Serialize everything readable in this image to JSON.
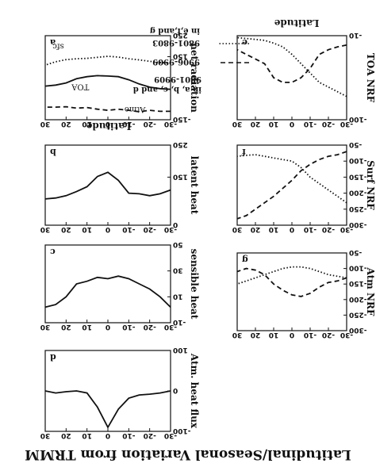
{
  "figure": {
    "title": "Latitudinal/Seasonal Variation from TRMM",
    "latitude_label": "Latitude",
    "legend": {
      "note_top": "in e,f,and g",
      "note_bottom": "in a, b, c, and d",
      "entries": [
        {
          "label": "9801-9803",
          "style": "dotted"
        },
        {
          "label": "9906-9909",
          "style": "dashed"
        },
        {
          "label": "9801-9909",
          "style": "solid"
        }
      ]
    },
    "colors": {
      "ink": "#111111",
      "background": "#ffffff"
    }
  },
  "chart_data": [
    {
      "panel": "a",
      "type": "line",
      "ylabel": "net radiation",
      "xlim": [
        -30,
        30
      ],
      "ylim": [
        250,
        -150
      ],
      "yticks": [
        -150,
        150,
        250
      ],
      "xticks": [
        -30,
        -20,
        -10,
        0,
        10,
        20,
        30
      ],
      "annotations": [
        "Atmo",
        "TOA",
        "sfc"
      ],
      "x": [
        -30,
        -25,
        -20,
        -15,
        -10,
        -5,
        0,
        5,
        10,
        15,
        20,
        25,
        30
      ],
      "series": [
        {
          "style": "dashed",
          "values": [
            -110,
            -110,
            -105,
            -112,
            -105,
            -100,
            -105,
            -100,
            -92,
            -95,
            -88,
            -90,
            -90
          ]
        },
        {
          "style": "solid",
          "values": [
            -5,
            -2,
            5,
            20,
            40,
            55,
            58,
            60,
            55,
            45,
            25,
            15,
            10
          ]
        },
        {
          "style": "dotted",
          "values": [
            120,
            122,
            128,
            135,
            140,
            148,
            152,
            147,
            142,
            140,
            136,
            126,
            110
          ]
        }
      ]
    },
    {
      "panel": "b",
      "type": "line",
      "ylabel": "latent heat",
      "xlim": [
        -30,
        30
      ],
      "ylim": [
        250,
        0
      ],
      "yticks": [
        0,
        150,
        250
      ],
      "xticks": [
        -30,
        -20,
        -10,
        0,
        10,
        20,
        30
      ],
      "x": [
        -30,
        -25,
        -20,
        -15,
        -10,
        -5,
        0,
        5,
        10,
        15,
        20,
        25,
        30
      ],
      "series": [
        {
          "style": "solid",
          "values": [
            110,
            98,
            92,
            98,
            100,
            140,
            165,
            152,
            120,
            105,
            92,
            85,
            82
          ]
        }
      ]
    },
    {
      "panel": "c",
      "type": "line",
      "ylabel": "sensible heat",
      "xlim": [
        -30,
        30
      ],
      "ylim": [
        50,
        -10
      ],
      "yticks": [
        -10,
        10,
        30,
        50
      ],
      "xticks": [
        -30,
        -20,
        -10,
        0,
        10,
        20,
        30
      ],
      "x": [
        -30,
        -25,
        -20,
        -15,
        -10,
        -5,
        0,
        5,
        10,
        15,
        20,
        25,
        30
      ],
      "series": [
        {
          "style": "solid",
          "values": [
            2,
            10,
            16,
            20,
            24,
            26,
            24,
            25,
            22,
            20,
            10,
            4,
            2
          ]
        }
      ]
    },
    {
      "panel": "d",
      "type": "line",
      "ylabel": "Atm. heat flux",
      "xlim": [
        -30,
        30
      ],
      "ylim": [
        100,
        -100
      ],
      "yticks": [
        -100,
        0,
        100
      ],
      "xticks": [
        -30,
        -20,
        -10,
        0,
        10,
        20,
        30
      ],
      "x": [
        -30,
        -25,
        -20,
        -15,
        -10,
        -5,
        0,
        5,
        10,
        15,
        20,
        25,
        30
      ],
      "series": [
        {
          "style": "solid",
          "values": [
            0,
            -5,
            -8,
            -10,
            -18,
            -45,
            -90,
            -40,
            -5,
            0,
            -2,
            -5,
            0
          ]
        }
      ]
    },
    {
      "panel": "e",
      "type": "line",
      "ylabel": "TOA NRF",
      "xlim": [
        -30,
        30
      ],
      "ylim": [
        -10,
        -100
      ],
      "yticks": [
        -100,
        -10
      ],
      "xticks": [
        -30,
        -20,
        -10,
        0,
        10,
        20,
        30
      ],
      "x": [
        -30,
        -25,
        -20,
        -15,
        -10,
        -5,
        0,
        5,
        10,
        15,
        20,
        25,
        30
      ],
      "series": [
        {
          "style": "dotted",
          "values": [
            -75,
            -70,
            -65,
            -60,
            -50,
            -40,
            -30,
            -22,
            -18,
            -15,
            -14,
            -13,
            -12
          ]
        },
        {
          "style": "dashed",
          "values": [
            -20,
            -22,
            -25,
            -30,
            -45,
            -55,
            -60,
            -60,
            -55,
            -40,
            -35,
            -30,
            -25
          ]
        }
      ]
    },
    {
      "panel": "f",
      "type": "line",
      "ylabel": "Surf NRF",
      "xlim": [
        -30,
        30
      ],
      "ylim": [
        -50,
        -300
      ],
      "yticks": [
        -300,
        -250,
        -200,
        -150,
        -100,
        -50
      ],
      "xticks": [
        -30,
        -20,
        -10,
        0,
        10,
        20,
        30
      ],
      "x": [
        -30,
        -25,
        -20,
        -15,
        -10,
        -5,
        0,
        5,
        10,
        15,
        20,
        25,
        30
      ],
      "series": [
        {
          "style": "dotted",
          "values": [
            -230,
            -210,
            -190,
            -170,
            -150,
            -120,
            -100,
            -95,
            -90,
            -85,
            -80,
            -82,
            -85
          ]
        },
        {
          "style": "dashed",
          "values": [
            -70,
            -80,
            -85,
            -95,
            -110,
            -130,
            -160,
            -185,
            -210,
            -230,
            -250,
            -270,
            -280
          ]
        }
      ]
    },
    {
      "panel": "g",
      "type": "line",
      "ylabel": "Atm NRF",
      "xlim": [
        -30,
        30
      ],
      "ylim": [
        -50,
        -300
      ],
      "yticks": [
        -300,
        -250,
        -200,
        -150,
        -100,
        -50
      ],
      "xticks": [
        -30,
        -20,
        -10,
        0,
        10,
        20,
        30
      ],
      "x": [
        -30,
        -25,
        -20,
        -15,
        -10,
        -5,
        0,
        5,
        10,
        15,
        20,
        25,
        30
      ],
      "series": [
        {
          "style": "dotted",
          "values": [
            -130,
            -125,
            -120,
            -110,
            -100,
            -95,
            -95,
            -100,
            -110,
            -120,
            -130,
            -140,
            -150
          ]
        },
        {
          "style": "dashed",
          "values": [
            -130,
            -140,
            -145,
            -160,
            -180,
            -190,
            -185,
            -170,
            -150,
            -120,
            -105,
            -100,
            -110
          ]
        }
      ]
    }
  ]
}
